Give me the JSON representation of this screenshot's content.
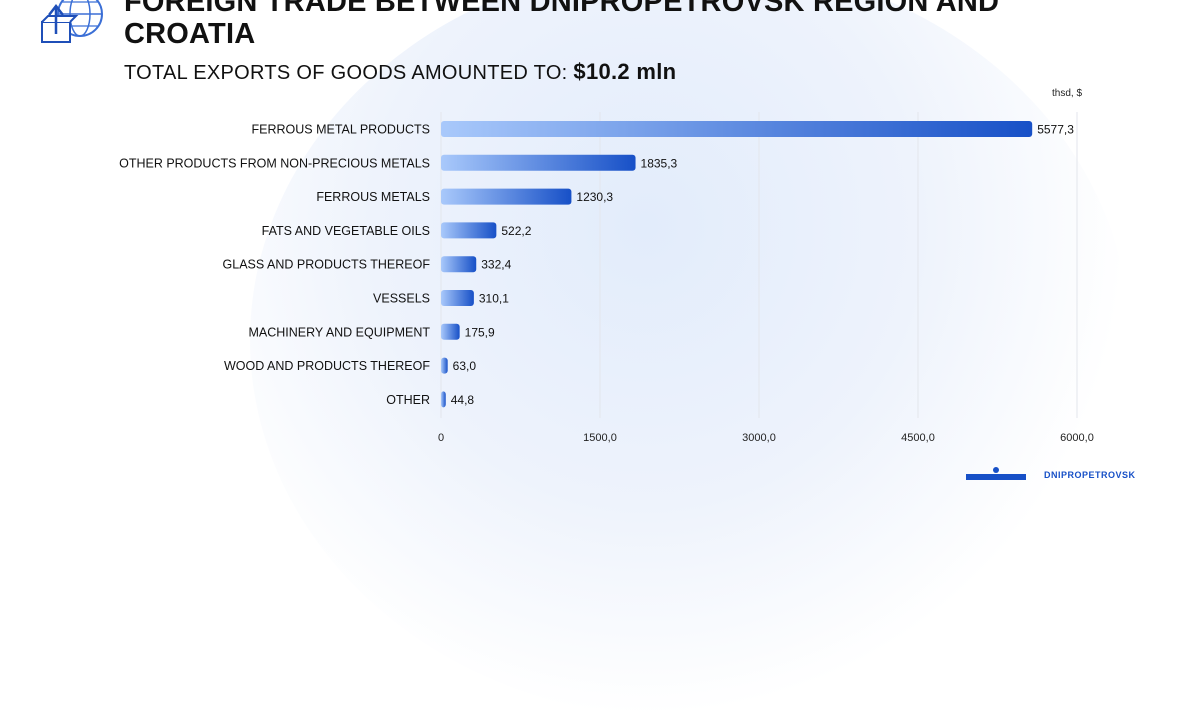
{
  "header": {
    "title": "FOREIGN TRADE BETWEEN DNIPROPETROVSK REGION AND CROATIA",
    "subtitle_prefix": "TOTAL EXPORTS OF GOODS AMOUNTED TO: ",
    "subtitle_value": "$10.2 mln",
    "logo_icon": "globe-box-arrow-icon"
  },
  "brand": {
    "text": "DNIPROPETROVSK"
  },
  "colors": {
    "bar_start": "#a9c9fb",
    "bar_end": "#1750c7",
    "grid": "#e3e6ec",
    "text": "#111111"
  },
  "chart_data": {
    "type": "bar",
    "orientation": "horizontal",
    "unit_label": "thsd, $",
    "categories": [
      "FERROUS METAL PRODUCTS",
      "OTHER PRODUCTS FROM NON-PRECIOUS METALS",
      "FERROUS METALS",
      "FATS AND VEGETABLE OILS",
      "GLASS AND PRODUCTS THEREOF",
      "VESSELS",
      "MACHINERY AND EQUIPMENT",
      "WOOD AND PRODUCTS THEREOF",
      "OTHER"
    ],
    "values": [
      5577.3,
      1835.3,
      1230.3,
      522.2,
      332.4,
      310.1,
      175.9,
      63.0,
      44.8
    ],
    "value_labels": [
      "5577,3",
      "1835,3",
      "1230,3",
      "522,2",
      "332,4",
      "310,1",
      "175,9",
      "63,0",
      "44,8"
    ],
    "xlim": [
      0,
      6000
    ],
    "x_ticks": [
      0,
      1500,
      3000,
      4500,
      6000
    ],
    "x_tick_labels": [
      "0",
      "1500,0",
      "3000,0",
      "4500,0",
      "6000,0"
    ],
    "grid": "vertical"
  }
}
